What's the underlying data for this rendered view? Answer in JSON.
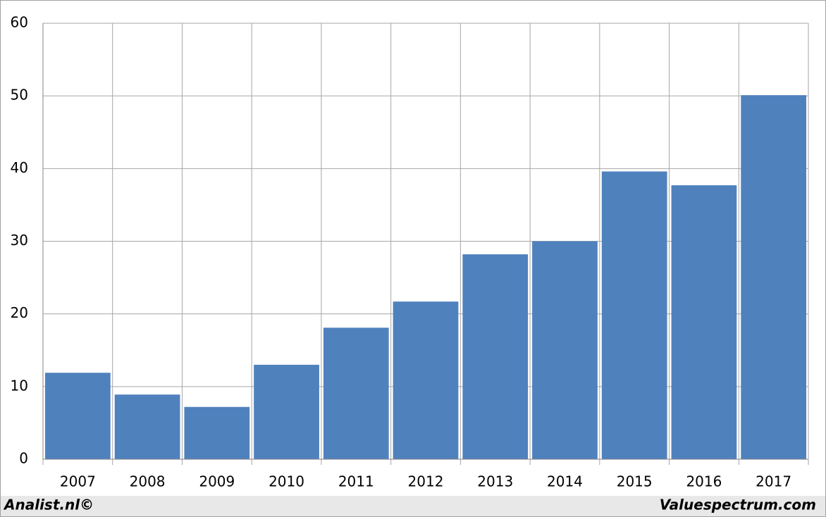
{
  "chart_data": {
    "type": "bar",
    "categories": [
      "2007",
      "2008",
      "2009",
      "2010",
      "2011",
      "2012",
      "2013",
      "2014",
      "2015",
      "2016",
      "2017"
    ],
    "values": [
      11.9,
      8.9,
      7.2,
      13.0,
      18.1,
      21.7,
      28.2,
      30.0,
      39.6,
      37.7,
      50.1
    ],
    "color": "#4f81bd",
    "ylim": [
      0,
      60
    ],
    "yticks": [
      0,
      10,
      20,
      30,
      40,
      50,
      60
    ],
    "grid": true
  },
  "footer": {
    "left": "Analist.nl©",
    "right": "Valuespectrum.com"
  }
}
